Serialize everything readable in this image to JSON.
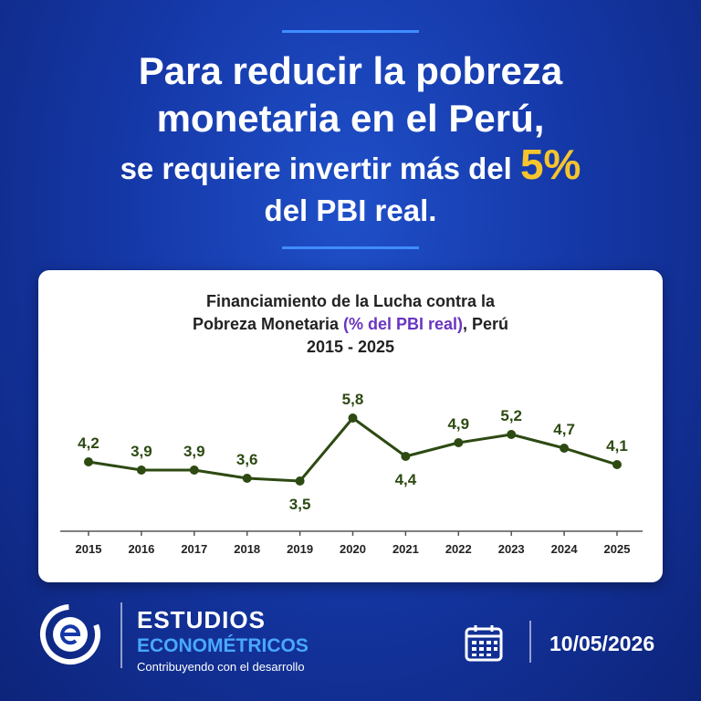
{
  "headline": {
    "line1": "Para reducir la pobreza",
    "line2": "monetaria en el Perú,",
    "line3_prefix": "se requiere invertir más del ",
    "line3_highlight": "5%",
    "line4": "del PBI real."
  },
  "chart_data": {
    "type": "line",
    "title_line1": "Financiamiento de la Lucha contra la",
    "title_line2_prefix": "Pobreza Monetaria ",
    "title_line2_accent": "(% del PBI real)",
    "title_line2_suffix": ", Perú",
    "title_line3": "2015 - 2025",
    "x": [
      "2015",
      "2016",
      "2017",
      "2018",
      "2019",
      "2020",
      "2021",
      "2022",
      "2023",
      "2024",
      "2025"
    ],
    "values": [
      4.2,
      3.9,
      3.9,
      3.6,
      3.5,
      5.8,
      4.4,
      4.9,
      5.2,
      4.7,
      4.1
    ],
    "labels": [
      "4,2",
      "3,9",
      "3,9",
      "3,6",
      "3,5",
      "5,8",
      "4,4",
      "4,9",
      "5,2",
      "4,7",
      "4,1"
    ],
    "label_positions": [
      "above",
      "above",
      "above",
      "above",
      "below",
      "above",
      "below",
      "above",
      "above",
      "above",
      "above"
    ],
    "line_color": "#2d4a12",
    "label_color": "#2d4a12",
    "grid": false
  },
  "footer": {
    "brand_line1": "ESTUDIOS",
    "brand_line2": "ECONOMÉTRICOS",
    "tagline": "Contribuyendo con el desarrollo",
    "date": "10/05/2026",
    "logo_icon": "e-logo-icon",
    "calendar_icon": "calendar-icon"
  },
  "colors": {
    "background": "#1538a8",
    "highlight": "#f7c52b",
    "accent_title": "#6a35c0",
    "brand_blue": "#49a8ff"
  }
}
